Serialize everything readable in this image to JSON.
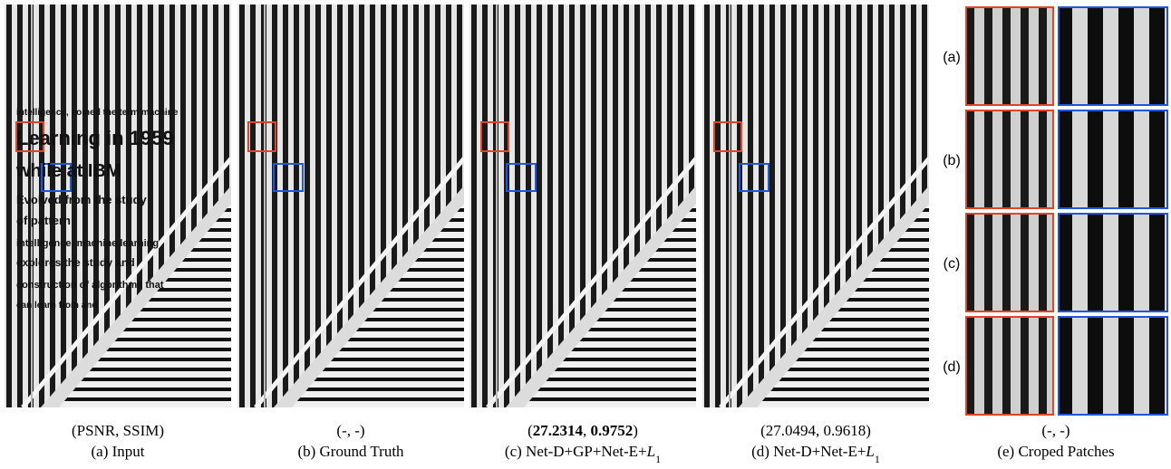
{
  "overlay_text": [
    "intelligence, coined the term machine",
    "Learning in 1959",
    "while at IBM",
    "Evolved from the study",
    "of pattern",
    "intelligence, machine learning",
    "explores the study and",
    "construction of algorithms that",
    "can learn from and"
  ],
  "patch_rows": [
    "(a)",
    "(b)",
    "(c)",
    "(d)"
  ],
  "panels": [
    {
      "metrics": [
        {
          "text": "(PSNR, SSIM)"
        }
      ],
      "caption": [
        {
          "text": "(a) Input"
        }
      ]
    },
    {
      "metrics": [
        {
          "text": "(-, -)"
        }
      ],
      "caption": [
        {
          "text": "(b) Ground Truth"
        }
      ]
    },
    {
      "metrics": [
        {
          "text": "("
        },
        {
          "text": "27.2314",
          "bold": true
        },
        {
          "text": ", "
        },
        {
          "text": "0.9752",
          "bold": true
        },
        {
          "text": ")"
        }
      ],
      "caption": [
        {
          "text": "(c) Net-D+GP+Net-E+"
        },
        {
          "text": "L",
          "italic": true
        },
        {
          "text": "1",
          "sub": true
        }
      ]
    },
    {
      "metrics": [
        {
          "text": "(27.0494, 0.9618)"
        }
      ],
      "caption": [
        {
          "text": "(d) Net-D+Net-E+"
        },
        {
          "text": "L",
          "italic": true
        },
        {
          "text": "1",
          "sub": true
        }
      ]
    },
    {
      "metrics": [
        {
          "text": "(-, -)"
        }
      ],
      "caption": [
        {
          "text": "(e) Croped Patches"
        }
      ]
    }
  ]
}
